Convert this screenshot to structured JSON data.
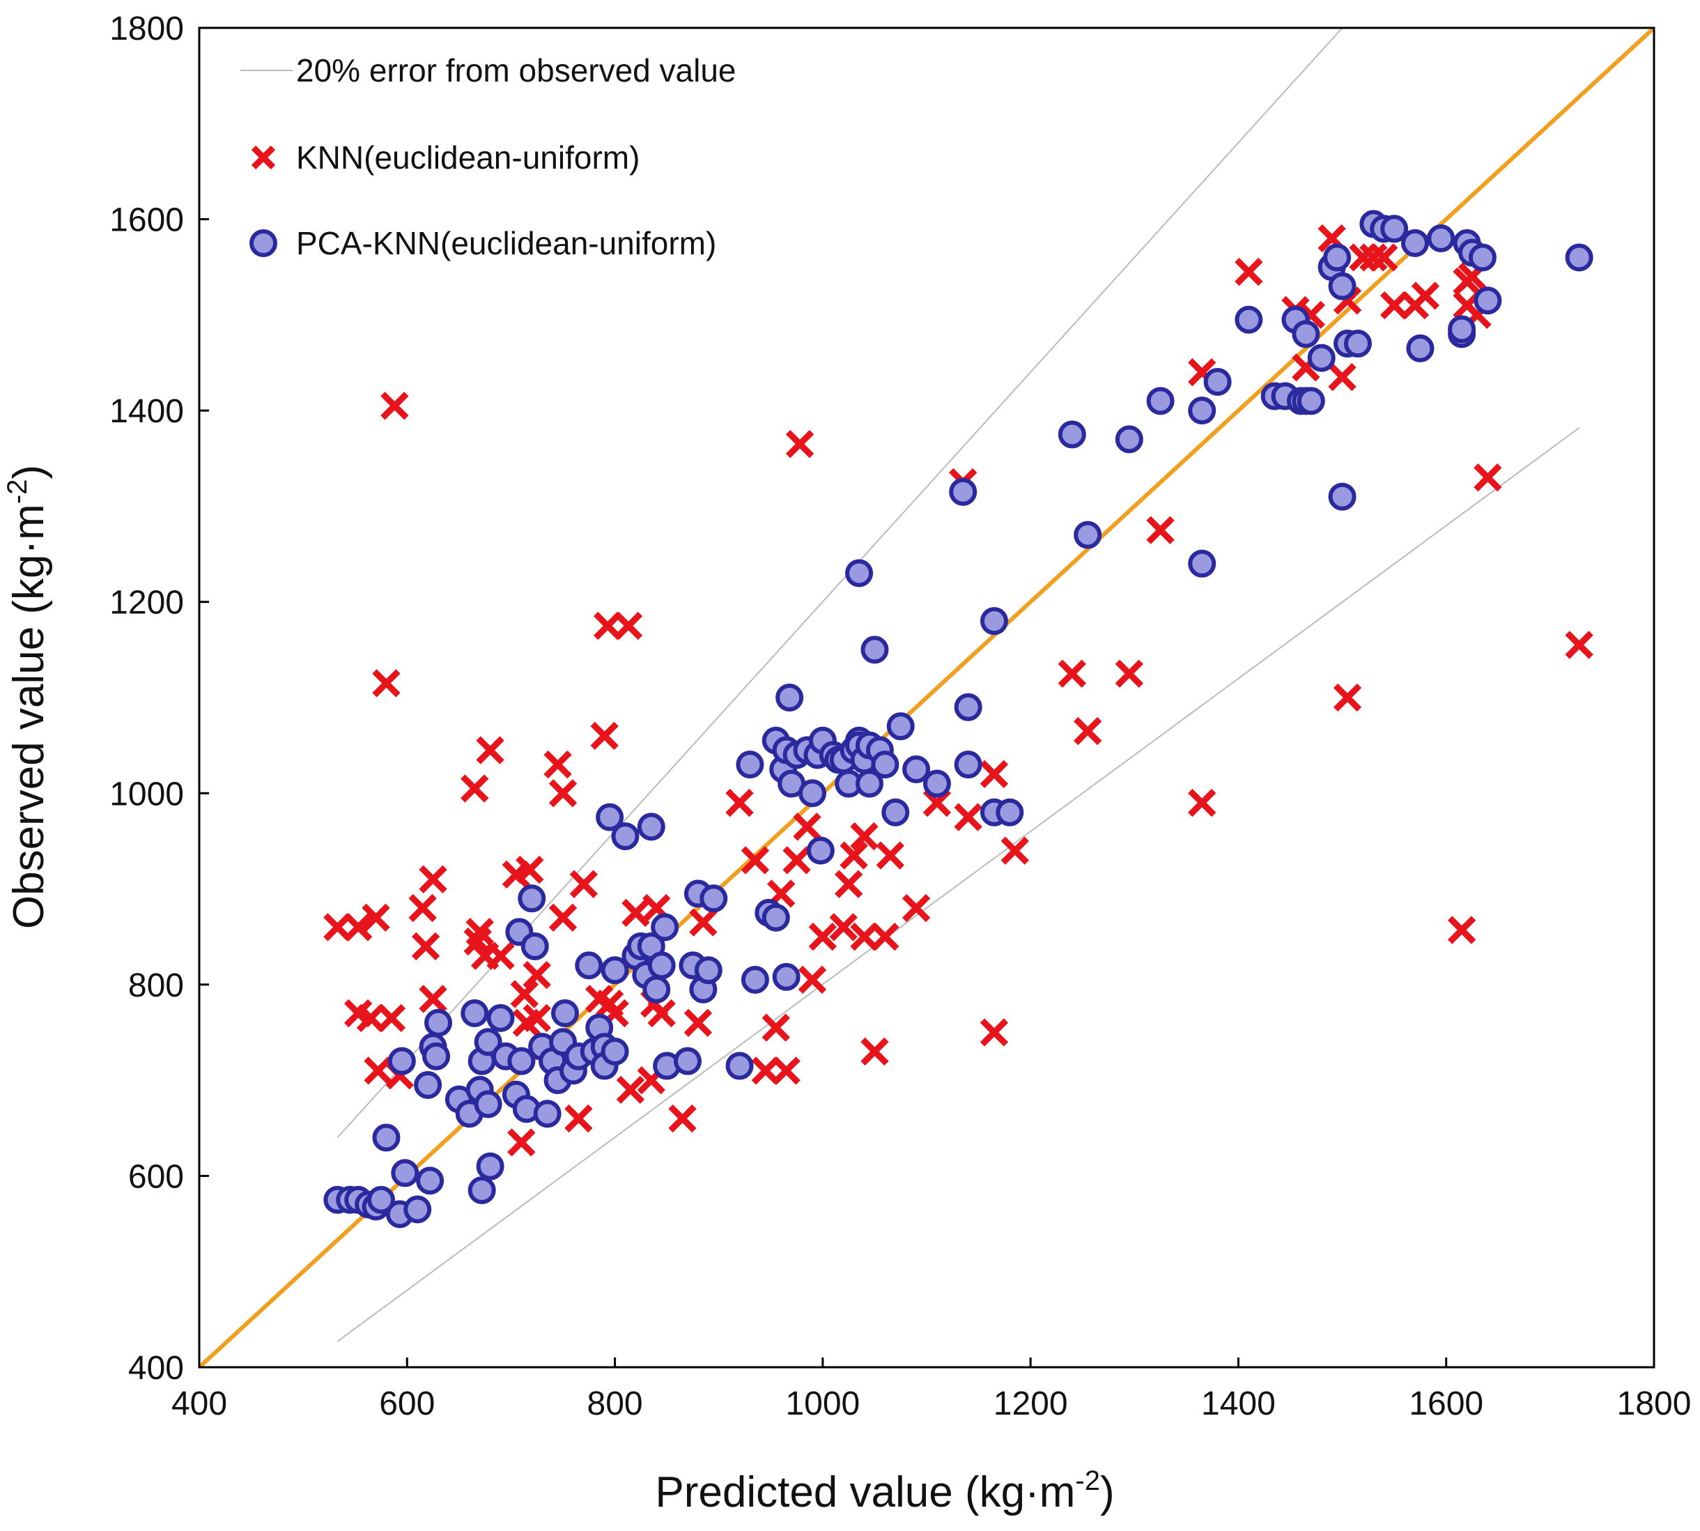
{
  "chart_data": {
    "type": "scatter",
    "xlabel": "Predicted value (kg·m",
    "xlabel_sup": "-2",
    "xlabel_tail": ")",
    "ylabel": "Observed value (kg·m",
    "ylabel_sup": "-2",
    "ylabel_tail": ")",
    "xlim": [
      400,
      1800
    ],
    "ylim": [
      400,
      1800
    ],
    "xticks": [
      "400",
      "600",
      "800",
      "1000",
      "1200",
      "1400",
      "1600",
      "1800"
    ],
    "yticks": [
      "400",
      "600",
      "800",
      "1000",
      "1200",
      "1400",
      "1600",
      "1800"
    ],
    "grid": false,
    "legend_position": "top-left",
    "legend": {
      "error_line": "20% error from observed value",
      "knn": "KNN(euclidean-uniform)",
      "pca_knn": "PCA-KNN(euclidean-uniform)"
    },
    "colors": {
      "identity_line": "#F0A020",
      "error_lines": "#BBBBBB",
      "knn_marker": "#E8141B",
      "pca_fill": "#9A9AE0",
      "pca_stroke": "#2A2A9E"
    },
    "lines": {
      "identity": [
        [
          400,
          400
        ],
        [
          1800,
          1800
        ]
      ],
      "upper_20pct": [
        [
          533,
          640
        ],
        [
          1500,
          1800
        ]
      ],
      "lower_20pct": [
        [
          533,
          427
        ],
        [
          1728,
          1382
        ]
      ]
    },
    "series": [
      {
        "name": "KNN(euclidean-uniform)",
        "marker": "x",
        "points": [
          [
            533,
            860
          ],
          [
            553,
            770
          ],
          [
            553,
            860
          ],
          [
            565,
            765
          ],
          [
            570,
            870
          ],
          [
            572,
            710
          ],
          [
            580,
            1115
          ],
          [
            585,
            765
          ],
          [
            588,
            1405
          ],
          [
            593,
            705
          ],
          [
            615,
            880
          ],
          [
            618,
            840
          ],
          [
            625,
            910
          ],
          [
            625,
            785
          ],
          [
            665,
            1005
          ],
          [
            668,
            845
          ],
          [
            670,
            855
          ],
          [
            675,
            830
          ],
          [
            680,
            1045
          ],
          [
            690,
            830
          ],
          [
            705,
            915
          ],
          [
            710,
            635
          ],
          [
            713,
            790
          ],
          [
            715,
            760
          ],
          [
            718,
            920
          ],
          [
            725,
            810
          ],
          [
            725,
            765
          ],
          [
            745,
            1030
          ],
          [
            750,
            870
          ],
          [
            750,
            1000
          ],
          [
            770,
            905
          ],
          [
            765,
            660
          ],
          [
            785,
            785
          ],
          [
            790,
            1060
          ],
          [
            793,
            1175
          ],
          [
            795,
            780
          ],
          [
            800,
            770
          ],
          [
            813,
            1175
          ],
          [
            815,
            690
          ],
          [
            820,
            875
          ],
          [
            835,
            700
          ],
          [
            838,
            780
          ],
          [
            840,
            880
          ],
          [
            845,
            770
          ],
          [
            865,
            660
          ],
          [
            880,
            760
          ],
          [
            885,
            865
          ],
          [
            920,
            990
          ],
          [
            935,
            930
          ],
          [
            945,
            710
          ],
          [
            955,
            755
          ],
          [
            960,
            895
          ],
          [
            965,
            710
          ],
          [
            975,
            930
          ],
          [
            978,
            1365
          ],
          [
            985,
            965
          ],
          [
            990,
            805
          ],
          [
            1000,
            850
          ],
          [
            1020,
            860
          ],
          [
            1025,
            905
          ],
          [
            1030,
            935
          ],
          [
            1040,
            955
          ],
          [
            1040,
            850
          ],
          [
            1050,
            730
          ],
          [
            1060,
            850
          ],
          [
            1065,
            935
          ],
          [
            1090,
            880
          ],
          [
            1110,
            990
          ],
          [
            1135,
            1325
          ],
          [
            1140,
            975
          ],
          [
            1165,
            1020
          ],
          [
            1165,
            750
          ],
          [
            1185,
            940
          ],
          [
            1240,
            1125
          ],
          [
            1255,
            1065
          ],
          [
            1295,
            1125
          ],
          [
            1325,
            1275
          ],
          [
            1365,
            1440
          ],
          [
            1365,
            990
          ],
          [
            1410,
            1545
          ],
          [
            1455,
            1505
          ],
          [
            1465,
            1445
          ],
          [
            1470,
            1500
          ],
          [
            1490,
            1580
          ],
          [
            1500,
            1435
          ],
          [
            1505,
            1515
          ],
          [
            1505,
            1100
          ],
          [
            1520,
            1560
          ],
          [
            1530,
            1560
          ],
          [
            1540,
            1560
          ],
          [
            1550,
            1510
          ],
          [
            1570,
            1510
          ],
          [
            1580,
            1520
          ],
          [
            1620,
            1510
          ],
          [
            1620,
            1535
          ],
          [
            1625,
            1540
          ],
          [
            1630,
            1500
          ],
          [
            1640,
            1330
          ],
          [
            1615,
            857
          ],
          [
            1728,
            1155
          ]
        ]
      },
      {
        "name": "PCA-KNN(euclidean-uniform)",
        "marker": "o",
        "points": [
          [
            533,
            575
          ],
          [
            545,
            575
          ],
          [
            553,
            575
          ],
          [
            563,
            570
          ],
          [
            570,
            568
          ],
          [
            575,
            575
          ],
          [
            580,
            640
          ],
          [
            593,
            560
          ],
          [
            595,
            720
          ],
          [
            598,
            603
          ],
          [
            610,
            565
          ],
          [
            620,
            695
          ],
          [
            622,
            595
          ],
          [
            625,
            735
          ],
          [
            628,
            725
          ],
          [
            630,
            760
          ],
          [
            650,
            680
          ],
          [
            660,
            665
          ],
          [
            665,
            770
          ],
          [
            670,
            690
          ],
          [
            672,
            720
          ],
          [
            672,
            585
          ],
          [
            678,
            740
          ],
          [
            680,
            610
          ],
          [
            678,
            675
          ],
          [
            690,
            765
          ],
          [
            695,
            725
          ],
          [
            705,
            685
          ],
          [
            708,
            855
          ],
          [
            710,
            720
          ],
          [
            715,
            670
          ],
          [
            720,
            890
          ],
          [
            723,
            840
          ],
          [
            730,
            735
          ],
          [
            735,
            665
          ],
          [
            740,
            720
          ],
          [
            745,
            700
          ],
          [
            750,
            740
          ],
          [
            752,
            770
          ],
          [
            760,
            710
          ],
          [
            765,
            725
          ],
          [
            775,
            820
          ],
          [
            780,
            730
          ],
          [
            785,
            755
          ],
          [
            790,
            735
          ],
          [
            790,
            715
          ],
          [
            795,
            975
          ],
          [
            800,
            815
          ],
          [
            800,
            730
          ],
          [
            810,
            955
          ],
          [
            820,
            830
          ],
          [
            825,
            840
          ],
          [
            830,
            810
          ],
          [
            835,
            840
          ],
          [
            835,
            965
          ],
          [
            840,
            795
          ],
          [
            845,
            820
          ],
          [
            848,
            860
          ],
          [
            850,
            715
          ],
          [
            870,
            720
          ],
          [
            875,
            820
          ],
          [
            880,
            895
          ],
          [
            885,
            795
          ],
          [
            890,
            815
          ],
          [
            895,
            890
          ],
          [
            920,
            715
          ],
          [
            930,
            1030
          ],
          [
            935,
            805
          ],
          [
            948,
            875
          ],
          [
            955,
            870
          ],
          [
            955,
            1055
          ],
          [
            962,
            1025
          ],
          [
            965,
            1045
          ],
          [
            965,
            808
          ],
          [
            968,
            1100
          ],
          [
            970,
            1010
          ],
          [
            975,
            1040
          ],
          [
            985,
            1045
          ],
          [
            990,
            1000
          ],
          [
            995,
            1040
          ],
          [
            998,
            940
          ],
          [
            1000,
            1055
          ],
          [
            1010,
            1040
          ],
          [
            1015,
            1035
          ],
          [
            1020,
            1035
          ],
          [
            1025,
            1010
          ],
          [
            1030,
            1045
          ],
          [
            1035,
            1055
          ],
          [
            1035,
            1050
          ],
          [
            1035,
            1230
          ],
          [
            1040,
            1035
          ],
          [
            1045,
            1050
          ],
          [
            1045,
            1010
          ],
          [
            1050,
            1150
          ],
          [
            1055,
            1045
          ],
          [
            1060,
            1030
          ],
          [
            1070,
            980
          ],
          [
            1075,
            1070
          ],
          [
            1090,
            1025
          ],
          [
            1110,
            1010
          ],
          [
            1135,
            1315
          ],
          [
            1140,
            1090
          ],
          [
            1140,
            1030
          ],
          [
            1165,
            980
          ],
          [
            1165,
            1180
          ],
          [
            1180,
            980
          ],
          [
            1240,
            1375
          ],
          [
            1255,
            1270
          ],
          [
            1295,
            1370
          ],
          [
            1325,
            1410
          ],
          [
            1365,
            1400
          ],
          [
            1365,
            1240
          ],
          [
            1380,
            1430
          ],
          [
            1410,
            1495
          ],
          [
            1435,
            1415
          ],
          [
            1445,
            1415
          ],
          [
            1460,
            1410
          ],
          [
            1465,
            1410
          ],
          [
            1470,
            1410
          ],
          [
            1455,
            1495
          ],
          [
            1465,
            1480
          ],
          [
            1480,
            1455
          ],
          [
            1490,
            1550
          ],
          [
            1495,
            1560
          ],
          [
            1500,
            1530
          ],
          [
            1500,
            1310
          ],
          [
            1505,
            1470
          ],
          [
            1515,
            1470
          ],
          [
            1530,
            1595
          ],
          [
            1540,
            1590
          ],
          [
            1550,
            1590
          ],
          [
            1570,
            1575
          ],
          [
            1575,
            1465
          ],
          [
            1595,
            1580
          ],
          [
            1615,
            1480
          ],
          [
            1615,
            1485
          ],
          [
            1620,
            1575
          ],
          [
            1625,
            1565
          ],
          [
            1635,
            1560
          ],
          [
            1640,
            1515
          ],
          [
            1728,
            1560
          ]
        ]
      }
    ]
  }
}
